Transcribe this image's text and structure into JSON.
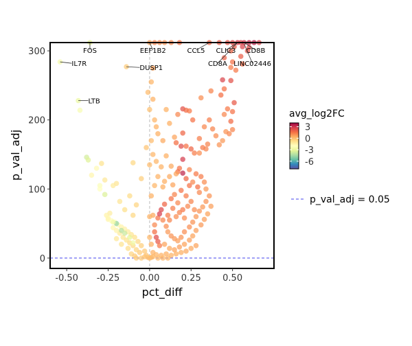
{
  "chart_data": {
    "type": "scatter",
    "title": "",
    "xlabel": "pct_diff",
    "ylabel": "p_val_adj",
    "xlim": [
      -0.6,
      0.75
    ],
    "ylim": [
      -15,
      312
    ],
    "x_ticks": [
      {
        "value": -0.5,
        "label": "-0.50"
      },
      {
        "value": -0.25,
        "label": "-0.25"
      },
      {
        "value": 0,
        "label": "0.00"
      },
      {
        "value": 0.25,
        "label": "0.25"
      },
      {
        "value": 0.5,
        "label": "0.50"
      }
    ],
    "y_ticks": [
      {
        "value": 0,
        "label": "0"
      },
      {
        "value": 100,
        "label": "100"
      },
      {
        "value": 200,
        "label": "200"
      },
      {
        "value": 300,
        "label": "300"
      }
    ],
    "vline_x": 0,
    "hline": {
      "y": 0.05,
      "label": "p_val_adj = 0.05",
      "color": "#6a6af0"
    },
    "colorbar": {
      "title": "avg_log2FC",
      "min": -8,
      "max": 4,
      "ticks": [
        {
          "value": 3,
          "label": "3"
        },
        {
          "value": 0,
          "label": "0"
        },
        {
          "value": -3,
          "label": "-3"
        },
        {
          "value": -6,
          "label": "-6"
        }
      ],
      "palette": [
        "#5e4fa2",
        "#3288bd",
        "#66c2a5",
        "#abdda4",
        "#e6f598",
        "#ffffbf",
        "#fee08b",
        "#fdae61",
        "#f46d43",
        "#d53e4f",
        "#9e0142"
      ]
    },
    "labels": [
      {
        "text": "FOS",
        "x": -0.36,
        "y": 312,
        "lx": -0.36,
        "ly": 301
      },
      {
        "text": "EEF1B2",
        "x": 0.0,
        "y": 312,
        "lx": 0.02,
        "ly": 301
      },
      {
        "text": "CCL5",
        "x": 0.36,
        "y": 312,
        "lx": 0.28,
        "ly": 301
      },
      {
        "text": "CLIC3",
        "x": 0.53,
        "y": 312,
        "lx": 0.46,
        "ly": 301
      },
      {
        "text": "CD8B",
        "x": 0.57,
        "y": 312,
        "lx": 0.64,
        "ly": 301
      },
      {
        "text": "CD8A",
        "x": 0.53,
        "y": 312,
        "lx": 0.41,
        "ly": 282
      },
      {
        "text": "LINC02446",
        "x": 0.57,
        "y": 310,
        "lx": 0.62,
        "ly": 282
      },
      {
        "text": "IL7R",
        "x": -0.54,
        "y": 284,
        "lx": -0.47,
        "ly": 282
      },
      {
        "text": "DUSP1",
        "x": -0.14,
        "y": 277,
        "lx": -0.06,
        "ly": 276
      },
      {
        "text": "LTB",
        "x": -0.43,
        "y": 228,
        "lx": -0.37,
        "ly": 228
      }
    ],
    "points": [
      [
        -0.36,
        312,
        -3.2
      ],
      [
        0.0,
        312,
        0.6
      ],
      [
        0.03,
        312,
        1.2
      ],
      [
        0.06,
        312,
        1.0
      ],
      [
        0.09,
        312,
        0.9
      ],
      [
        0.13,
        312,
        1.1
      ],
      [
        0.18,
        312,
        1.5
      ],
      [
        0.36,
        312,
        1.8
      ],
      [
        0.42,
        312,
        2.0
      ],
      [
        0.47,
        312,
        2.2
      ],
      [
        0.5,
        312,
        2.5
      ],
      [
        0.53,
        312,
        2.8
      ],
      [
        0.55,
        312,
        2.6
      ],
      [
        0.57,
        312,
        2.9
      ],
      [
        0.6,
        312,
        3.2
      ],
      [
        0.63,
        312,
        3.5
      ],
      [
        0.66,
        312,
        2.6
      ],
      [
        0.51,
        306,
        2.1
      ],
      [
        0.56,
        306,
        2.6
      ],
      [
        0.6,
        305,
        2.4
      ],
      [
        0.49,
        300,
        1.8
      ],
      [
        0.59,
        300,
        2.2
      ],
      [
        0.55,
        292,
        2.0
      ],
      [
        0.5,
        284,
        1.5
      ],
      [
        0.56,
        281,
        1.7
      ],
      [
        0.45,
        290,
        1.9
      ],
      [
        0.49,
        276,
        1.3
      ],
      [
        0.52,
        272,
        1.4
      ],
      [
        -0.54,
        284,
        -2.5
      ],
      [
        -0.14,
        277,
        -0.3
      ],
      [
        -0.43,
        228,
        -2.9
      ],
      [
        -0.42,
        214,
        -2.4
      ],
      [
        0.44,
        258,
        2.6
      ],
      [
        0.49,
        257,
        2.3
      ],
      [
        0.43,
        236,
        1.6
      ],
      [
        0.45,
        245,
        1.5
      ],
      [
        0.51,
        225,
        2.1
      ],
      [
        0.47,
        216,
        1.4
      ],
      [
        0.5,
        212,
        1.5
      ],
      [
        0.45,
        208,
        1.1
      ],
      [
        0.49,
        198,
        1.7
      ],
      [
        0.5,
        186,
        1.2
      ],
      [
        0.46,
        183,
        0.9
      ],
      [
        0.48,
        180,
        1.1
      ],
      [
        0.44,
        170,
        0.8
      ],
      [
        0.42,
        164,
        0.9
      ],
      [
        0.31,
        232,
        1.0
      ],
      [
        0.36,
        200,
        1.3
      ],
      [
        0.37,
        242,
        1.2
      ],
      [
        0.2,
        216,
        2.3
      ],
      [
        0.22,
        214,
        1.7
      ],
      [
        0.24,
        213,
        1.4
      ],
      [
        0.26,
        200,
        1.5
      ],
      [
        0.17,
        208,
        1.1
      ],
      [
        0.2,
        181,
        1.8
      ],
      [
        0.16,
        167,
        1.6
      ],
      [
        0.19,
        162,
        2.4
      ],
      [
        0.22,
        162,
        1.5
      ],
      [
        0.25,
        158,
        1.8
      ],
      [
        0.27,
        152,
        1.3
      ],
      [
        0.3,
        152,
        1.0
      ],
      [
        0.32,
        160,
        1.4
      ],
      [
        0.34,
        158,
        1.2
      ],
      [
        0.3,
        173,
        1.3
      ],
      [
        0.33,
        190,
        1.1
      ],
      [
        0.35,
        165,
        1.2
      ],
      [
        0.4,
        177,
        1.0
      ],
      [
        0.38,
        187,
        1.2
      ],
      [
        0.2,
        143,
        2.8
      ],
      [
        0.18,
        130,
        1.5
      ],
      [
        0.24,
        128,
        1.2
      ],
      [
        0.28,
        122,
        1.4
      ],
      [
        0.26,
        110,
        1.1
      ],
      [
        0.31,
        118,
        1.3
      ],
      [
        0.33,
        110,
        1.0
      ],
      [
        0.29,
        103,
        1.6
      ],
      [
        0.17,
        125,
        1.6
      ],
      [
        0.2,
        123,
        3.3
      ],
      [
        0.22,
        115,
        1.8
      ],
      [
        0.24,
        105,
        1.5
      ],
      [
        0.3,
        95,
        1.1
      ],
      [
        0.34,
        100,
        0.8
      ],
      [
        0.36,
        90,
        0.9
      ],
      [
        0.05,
        180,
        0.4
      ],
      [
        0.08,
        170,
        0.5
      ],
      [
        0.1,
        148,
        0.4
      ],
      [
        0.07,
        132,
        0.3
      ],
      [
        0.13,
        133,
        0.5
      ],
      [
        0.16,
        122,
        0.6
      ],
      [
        0.05,
        118,
        0.3
      ],
      [
        0.09,
        111,
        0.4
      ],
      [
        0.12,
        118,
        0.5
      ],
      [
        0.14,
        106,
        0.6
      ],
      [
        0.08,
        103,
        0.4
      ],
      [
        0.03,
        105,
        0.2
      ],
      [
        0.1,
        215,
        0.3
      ],
      [
        0.12,
        195,
        0.4
      ],
      [
        0.15,
        175,
        0.6
      ],
      [
        0.04,
        140,
        0.2
      ],
      [
        0.02,
        275,
        0.6
      ],
      [
        0.01,
        255,
        0.2
      ],
      [
        -0.01,
        240,
        0.1
      ],
      [
        0.02,
        230,
        0.3
      ],
      [
        0.0,
        215,
        0.0
      ],
      [
        0.03,
        200,
        0.2
      ],
      [
        0.04,
        190,
        0.3
      ],
      [
        0.01,
        170,
        0.1
      ],
      [
        -0.02,
        160,
        -0.1
      ],
      [
        0.02,
        150,
        0.2
      ],
      [
        0.0,
        135,
        0.1
      ],
      [
        -0.1,
        138,
        -0.6
      ],
      [
        -0.05,
        115,
        -0.4
      ],
      [
        -0.2,
        108,
        -1.0
      ],
      [
        -0.22,
        105,
        -1.2
      ],
      [
        -0.12,
        90,
        -0.7
      ],
      [
        -0.08,
        77,
        -0.5
      ],
      [
        -0.18,
        82,
        -1.0
      ],
      [
        -0.15,
        70,
        -0.8
      ],
      [
        -0.1,
        62,
        -0.6
      ],
      [
        -0.24,
        65,
        -1.3
      ],
      [
        -0.26,
        62,
        -1.5
      ],
      [
        -0.25,
        56,
        -1.6
      ],
      [
        -0.23,
        54,
        -1.9
      ],
      [
        -0.21,
        52,
        -2.0
      ],
      [
        -0.19,
        48,
        -1.8
      ],
      [
        -0.17,
        45,
        -1.5
      ],
      [
        -0.15,
        42,
        -1.4
      ],
      [
        -0.13,
        38,
        -1.2
      ],
      [
        -0.11,
        34,
        -1.0
      ],
      [
        -0.09,
        30,
        -0.8
      ],
      [
        -0.07,
        24,
        -0.6
      ],
      [
        -0.05,
        18,
        -0.4
      ],
      [
        -0.03,
        10,
        -0.2
      ],
      [
        -0.18,
        36,
        -1.2
      ],
      [
        -0.16,
        30,
        -1.0
      ],
      [
        -0.14,
        26,
        -0.9
      ],
      [
        -0.12,
        22,
        -0.7
      ],
      [
        -0.1,
        18,
        -0.6
      ],
      [
        -0.08,
        12,
        -0.5
      ],
      [
        -0.06,
        8,
        -0.3
      ],
      [
        -0.22,
        44,
        -1.6
      ],
      [
        -0.2,
        40,
        -1.5
      ],
      [
        -0.2,
        28,
        -1.1
      ],
      [
        -0.17,
        20,
        -0.9
      ],
      [
        -0.13,
        14,
        -0.7
      ],
      [
        -0.11,
        6,
        -0.5
      ],
      [
        -0.09,
        3,
        -0.3
      ],
      [
        -0.27,
        92,
        -3.4
      ],
      [
        -0.3,
        105,
        -2.2
      ],
      [
        -0.3,
        100,
        -2.0
      ],
      [
        -0.35,
        120,
        -1.6
      ],
      [
        -0.38,
        146,
        -3.6
      ],
      [
        -0.37,
        142,
        -3.3
      ],
      [
        -0.32,
        130,
        -1.8
      ],
      [
        -0.29,
        137,
        -0.9
      ],
      [
        -0.27,
        113,
        -1.1
      ],
      [
        -0.25,
        58,
        -1.7
      ],
      [
        -0.2,
        50,
        -4.8
      ],
      [
        -0.17,
        40,
        -4.2
      ],
      [
        -0.15,
        36,
        -3.8
      ],
      [
        -0.12,
        30,
        -3.2
      ],
      [
        -0.1,
        22,
        -2.7
      ],
      [
        -0.22,
        52,
        -2.6
      ],
      [
        0.03,
        48,
        1.1
      ],
      [
        0.05,
        58,
        1.5
      ],
      [
        0.07,
        70,
        2.5
      ],
      [
        0.06,
        64,
        2.8
      ],
      [
        0.09,
        78,
        1.8
      ],
      [
        0.11,
        62,
        1.3
      ],
      [
        0.03,
        38,
        1.6
      ],
      [
        0.04,
        30,
        2.4
      ],
      [
        0.05,
        24,
        2.1
      ],
      [
        0.06,
        18,
        1.4
      ],
      [
        0.08,
        55,
        1.2
      ],
      [
        0.1,
        46,
        1.0
      ],
      [
        0.12,
        55,
        1.2
      ],
      [
        0.14,
        72,
        1.3
      ],
      [
        0.13,
        86,
        1.5
      ],
      [
        0.15,
        92,
        1.2
      ],
      [
        0.17,
        80,
        1.1
      ],
      [
        0.16,
        60,
        1.0
      ],
      [
        0.18,
        66,
        1.2
      ],
      [
        0.2,
        70,
        1.4
      ],
      [
        0.21,
        58,
        1.0
      ],
      [
        0.23,
        75,
        1.1
      ],
      [
        0.25,
        82,
        1.2
      ],
      [
        0.27,
        70,
        1.0
      ],
      [
        0.22,
        90,
        1.3
      ],
      [
        0.19,
        98,
        1.5
      ],
      [
        0.11,
        38,
        0.8
      ],
      [
        0.13,
        32,
        0.9
      ],
      [
        0.15,
        28,
        0.8
      ],
      [
        0.17,
        25,
        0.7
      ],
      [
        0.19,
        30,
        0.9
      ],
      [
        0.21,
        38,
        1.0
      ],
      [
        0.24,
        45,
        1.0
      ],
      [
        0.26,
        52,
        0.9
      ],
      [
        0.28,
        60,
        0.8
      ],
      [
        0.3,
        68,
        0.9
      ],
      [
        0.32,
        74,
        0.8
      ],
      [
        0.34,
        82,
        0.9
      ],
      [
        0.09,
        20,
        0.6
      ],
      [
        0.12,
        14,
        0.5
      ],
      [
        0.15,
        12,
        0.6
      ],
      [
        0.18,
        16,
        0.7
      ],
      [
        0.21,
        20,
        0.6
      ],
      [
        0.24,
        26,
        0.7
      ],
      [
        0.26,
        32,
        0.6
      ],
      [
        0.28,
        40,
        0.7
      ],
      [
        0.31,
        48,
        0.8
      ],
      [
        0.33,
        56,
        0.7
      ],
      [
        0.35,
        64,
        0.6
      ],
      [
        0.37,
        75,
        0.7
      ],
      [
        0.02,
        8,
        0.3
      ],
      [
        0.04,
        5,
        0.2
      ],
      [
        0.07,
        4,
        0.3
      ],
      [
        0.1,
        6,
        0.4
      ],
      [
        0.13,
        4,
        0.3
      ],
      [
        0.16,
        6,
        0.4
      ],
      [
        0.19,
        8,
        0.4
      ],
      [
        0.22,
        10,
        0.5
      ],
      [
        0.25,
        14,
        0.5
      ],
      [
        0.28,
        18,
        0.6
      ],
      [
        0.01,
        20,
        0.4
      ],
      [
        0.0,
        30,
        0.2
      ],
      [
        0.02,
        62,
        0.5
      ],
      [
        0.01,
        90,
        0.3
      ],
      [
        0.0,
        60,
        0.3
      ],
      [
        -0.03,
        2,
        -0.1
      ],
      [
        -0.01,
        1,
        0.0
      ],
      [
        0.0,
        0,
        0.0
      ],
      [
        0.01,
        1,
        0.1
      ],
      [
        0.02,
        2,
        0.1
      ],
      [
        -0.05,
        0,
        -0.2
      ],
      [
        0.05,
        0,
        0.1
      ],
      [
        -0.08,
        0,
        -0.3
      ],
      [
        0.08,
        0,
        0.2
      ],
      [
        0.11,
        0,
        0.2
      ],
      [
        -0.02,
        4,
        -0.1
      ]
    ]
  },
  "legend": {
    "colorbar_title": "avg_log2FC",
    "line_label": "p_val_adj = 0.05"
  }
}
